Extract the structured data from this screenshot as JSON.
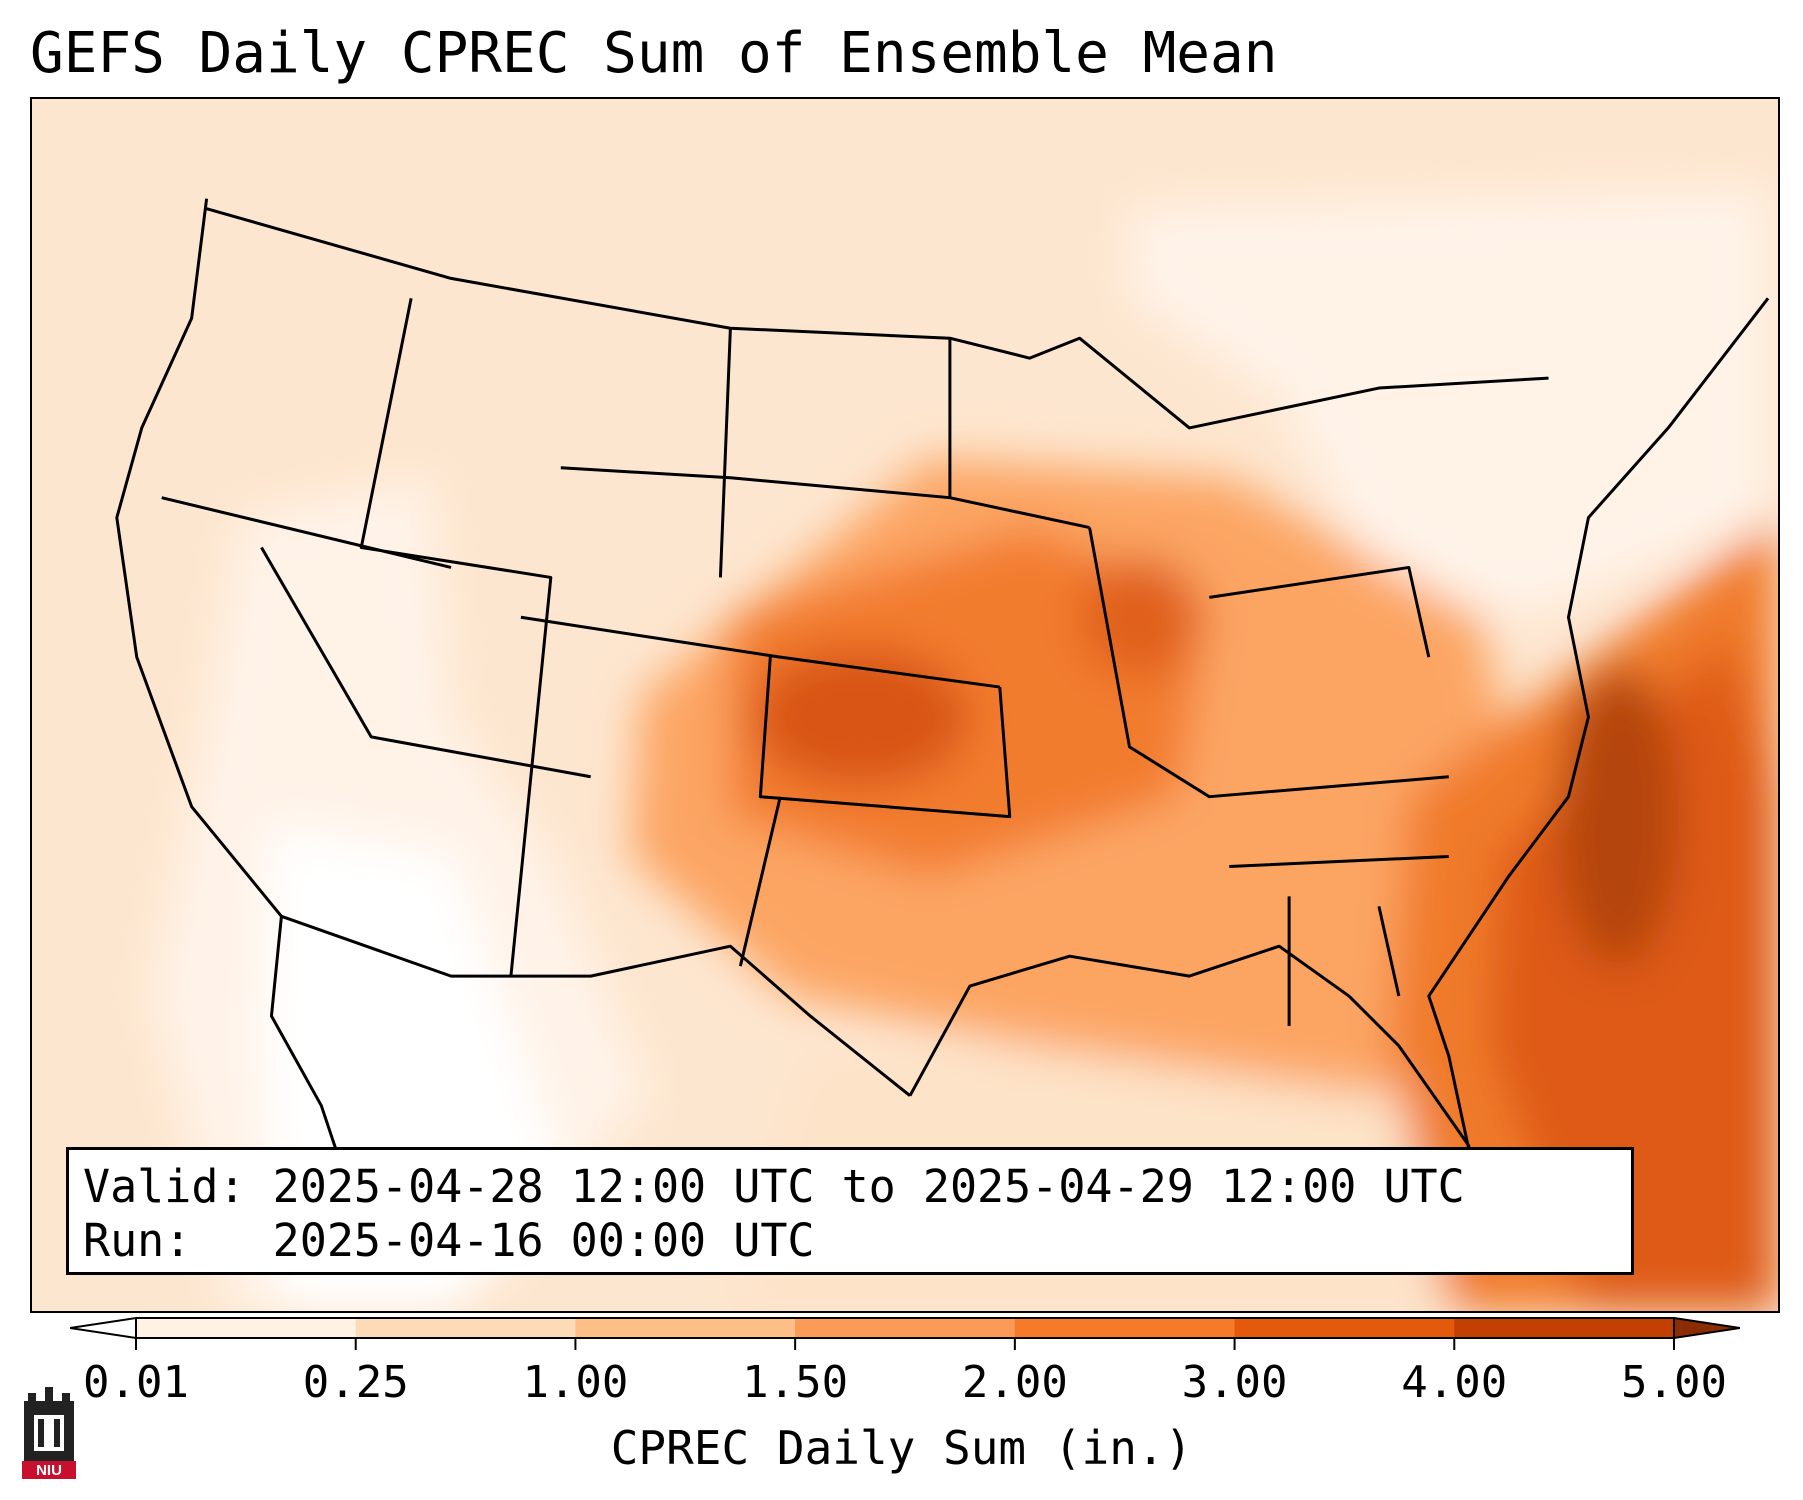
{
  "title": "GEFS Daily CPREC Sum of Ensemble Mean",
  "info": {
    "valid_label": "Valid:",
    "valid_value": "2025-04-28 12:00 UTC to 2025-04-29 12:00 UTC",
    "run_label": "Run:",
    "run_value": "2025-04-16 00:00 UTC"
  },
  "colorbar": {
    "label": "CPREC Daily Sum (in.)",
    "ticks": [
      "0.01",
      "0.25",
      "1.00",
      "1.50",
      "2.00",
      "3.00",
      "4.00",
      "5.00"
    ],
    "colors": [
      "#fff1e4",
      "#fddbb6",
      "#fdbf85",
      "#fc9a56",
      "#f57a2a",
      "#e35a0b",
      "#c34003"
    ],
    "under_color": "#ffffff",
    "over_color": "#8a2d02"
  },
  "logo": {
    "text": "NIU",
    "icon": "niu-tower-icon"
  }
}
